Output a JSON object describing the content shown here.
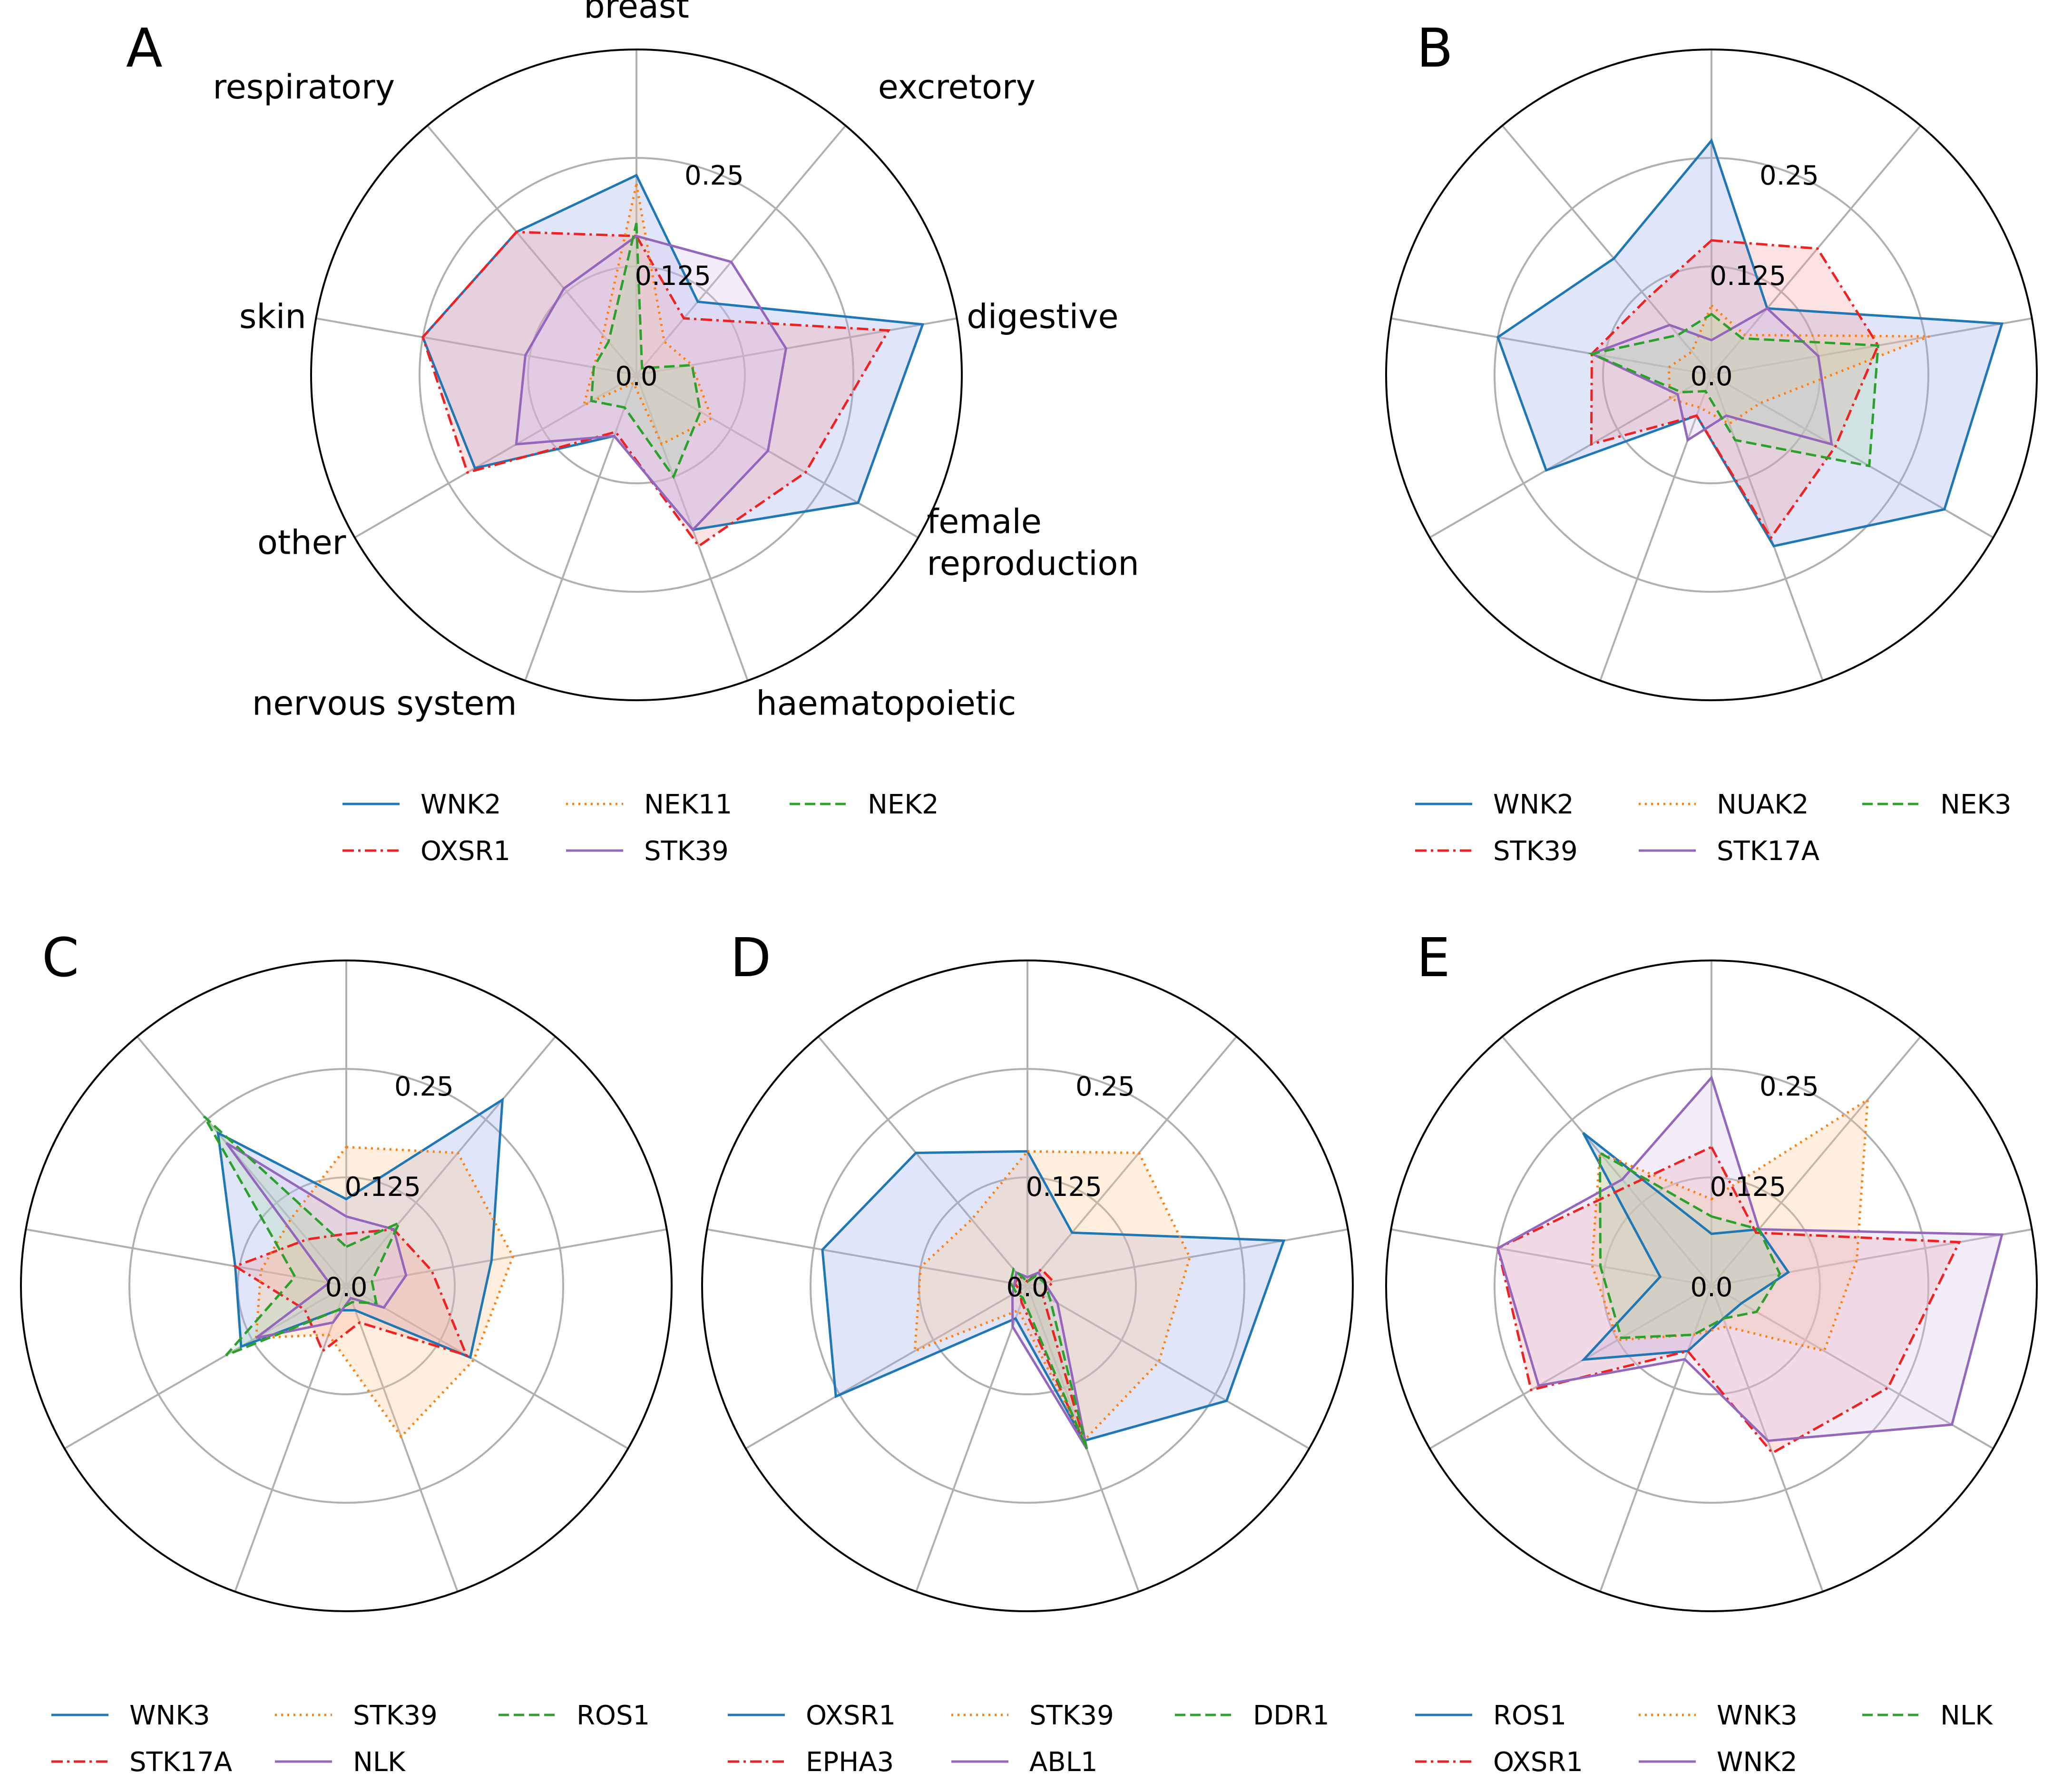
{
  "chart_data": [
    {
      "panel": "A",
      "type": "radar",
      "categories": [
        "breast",
        "excretory",
        "digestive",
        "female reproduction",
        "haematopoietic",
        "nervous system",
        "other",
        "skin",
        "respiratory"
      ],
      "category_labels": [
        [
          "breast"
        ],
        [
          "excretory"
        ],
        [
          "digestive"
        ],
        [
          "female",
          "reproduction"
        ],
        [
          "haematopoietic"
        ],
        [
          "nervous system"
        ],
        [
          "other"
        ],
        [
          "skin"
        ],
        [
          "respiratory"
        ]
      ],
      "show_category_labels": true,
      "rlim": [
        0,
        0.375
      ],
      "rticks": [
        "0.0",
        "0.125",
        "0.25"
      ],
      "series": [
        {
          "name": "WNK2",
          "color": "#1f77b4",
          "style": "solid",
          "fill": "#9aa8f0",
          "values": [
            0.23,
            0.11,
            0.335,
            0.295,
            0.19,
            0.075,
            0.215,
            0.25,
            0.215
          ]
        },
        {
          "name": "OXSR1",
          "color": "#ee2222",
          "style": "dashdot",
          "fill": "#f5a0a0",
          "values": [
            0.16,
            0.085,
            0.295,
            0.225,
            0.21,
            0.07,
            0.225,
            0.25,
            0.215
          ]
        },
        {
          "name": "NEK11",
          "color": "#ff7f0e",
          "style": "dotted",
          "fill": "#ffc890",
          "values": [
            0.22,
            0.05,
            0.065,
            0.1,
            0.085,
            0.01,
            0.07,
            0.05,
            0.06
          ]
        },
        {
          "name": "STK39",
          "color": "#9467bd",
          "style": "solid",
          "fill": "#d8c4ee",
          "values": [
            0.16,
            0.17,
            0.175,
            0.175,
            0.19,
            0.075,
            0.16,
            0.13,
            0.13
          ]
        },
        {
          "name": "NEK2",
          "color": "#2ca02c",
          "style": "dashed",
          "fill": "#a8dca8",
          "values": [
            0.175,
            0.01,
            0.065,
            0.085,
            0.125,
            0.04,
            0.06,
            0.05,
            0.05
          ]
        }
      ]
    },
    {
      "panel": "B",
      "type": "radar",
      "categories": [
        "breast",
        "excretory",
        "digestive",
        "female reproduction",
        "haematopoietic",
        "nervous system",
        "other",
        "skin",
        "respiratory"
      ],
      "show_category_labels": false,
      "rlim": [
        0,
        0.375
      ],
      "rticks": [
        "0.0",
        "0.125",
        "0.25"
      ],
      "series": [
        {
          "name": "WNK2",
          "color": "#1f77b4",
          "style": "solid",
          "fill": "#9aa8f0",
          "values": [
            0.27,
            0.1,
            0.34,
            0.31,
            0.21,
            0.05,
            0.22,
            0.25,
            0.175
          ]
        },
        {
          "name": "STK39",
          "color": "#ee2222",
          "style": "dashdot",
          "fill": "#f5a0a0",
          "values": [
            0.155,
            0.19,
            0.195,
            0.165,
            0.2,
            0.05,
            0.16,
            0.14,
            0.115
          ]
        },
        {
          "name": "NUAK2",
          "color": "#ff7f0e",
          "style": "dotted",
          "fill": "#ffc890",
          "values": [
            0.08,
            0.06,
            0.255,
            0.065,
            0.06,
            0.04,
            0.055,
            0.05,
            0.035
          ]
        },
        {
          "name": "STK17A",
          "color": "#9467bd",
          "style": "solid",
          "fill": "#d8c4ee",
          "values": [
            0.04,
            0.1,
            0.125,
            0.16,
            0.05,
            0.08,
            0.045,
            0.14,
            0.075
          ]
        },
        {
          "name": "NEK3",
          "color": "#2ca02c",
          "style": "dashed",
          "fill": "#a8dca8",
          "values": [
            0.07,
            0.055,
            0.195,
            0.21,
            0.08,
            0.02,
            0.04,
            0.14,
            0.06
          ]
        }
      ]
    },
    {
      "panel": "C",
      "type": "radar",
      "categories": [
        "breast",
        "excretory",
        "digestive",
        "female reproduction",
        "haematopoietic",
        "nervous system",
        "other",
        "skin",
        "respiratory"
      ],
      "show_category_labels": false,
      "rlim": [
        0,
        0.375
      ],
      "rticks": [
        "0.0",
        "0.125",
        "0.25"
      ],
      "series": [
        {
          "name": "WNK3",
          "color": "#1f77b4",
          "style": "solid",
          "fill": "#9aa8f0",
          "values": [
            0.1,
            0.28,
            0.17,
            0.165,
            0.03,
            0.03,
            0.14,
            0.13,
            0.23
          ]
        },
        {
          "name": "STK17A",
          "color": "#ee2222",
          "style": "dashdot",
          "fill": "#f5a0a0",
          "values": [
            0.06,
            0.085,
            0.1,
            0.16,
            0.045,
            0.08,
            0.055,
            0.13,
            0.07
          ]
        },
        {
          "name": "STK39",
          "color": "#ff7f0e",
          "style": "dotted",
          "fill": "#ffc890",
          "values": [
            0.16,
            0.2,
            0.195,
            0.17,
            0.185,
            0.06,
            0.12,
            0.1,
            0.1
          ]
        },
        {
          "name": "NLK",
          "color": "#9467bd",
          "style": "solid",
          "fill": "#d8c4ee",
          "values": [
            0.08,
            0.085,
            0.07,
            0.05,
            0.015,
            0.045,
            0.12,
            0.02,
            0.215
          ]
        },
        {
          "name": "ROS1",
          "color": "#2ca02c",
          "style": "dashed",
          "fill": "#a8dca8",
          "values": [
            0.045,
            0.095,
            0.03,
            0.04,
            0.02,
            0.03,
            0.16,
            0.06,
            0.255
          ]
        }
      ]
    },
    {
      "panel": "D",
      "type": "radar",
      "categories": [
        "breast",
        "excretory",
        "digestive",
        "female reproduction",
        "haematopoietic",
        "nervous system",
        "other",
        "skin",
        "respiratory"
      ],
      "show_category_labels": false,
      "rlim": [
        0,
        0.375
      ],
      "rticks": [
        "0.0",
        "0.125",
        "0.25"
      ],
      "series": [
        {
          "name": "OXSR1",
          "color": "#1f77b4",
          "style": "solid",
          "fill": "#9aa8f0",
          "values": [
            0.155,
            0.08,
            0.3,
            0.265,
            0.19,
            0.04,
            0.255,
            0.24,
            0.2
          ]
        },
        {
          "name": "EPHA3",
          "color": "#ee2222",
          "style": "dashdot",
          "fill": "#f5a0a0",
          "values": [
            0.005,
            0.025,
            0.03,
            0.02,
            0.195,
            0.02,
            0.01,
            0.015,
            0.015
          ]
        },
        {
          "name": "STK39",
          "color": "#ff7f0e",
          "style": "dotted",
          "fill": "#ffc890",
          "values": [
            0.155,
            0.2,
            0.19,
            0.175,
            0.19,
            0.03,
            0.15,
            0.125,
            0.1
          ]
        },
        {
          "name": "ABL1",
          "color": "#9467bd",
          "style": "solid",
          "fill": "#d8c4ee",
          "values": [
            0.01,
            0.02,
            0.02,
            0.04,
            0.2,
            0.05,
            0.02,
            0.015,
            0.02
          ]
        },
        {
          "name": "DDR1",
          "color": "#2ca02c",
          "style": "dashed",
          "fill": "#a8dca8",
          "values": [
            0.005,
            0.015,
            0.02,
            0.03,
            0.2,
            0.015,
            0.015,
            0.02,
            0.025
          ]
        }
      ]
    },
    {
      "panel": "E",
      "type": "radar",
      "categories": [
        "breast",
        "excretory",
        "digestive",
        "female reproduction",
        "haematopoietic",
        "nervous system",
        "other",
        "skin",
        "respiratory"
      ],
      "show_category_labels": false,
      "rlim": [
        0,
        0.375
      ],
      "rticks": [
        "0.0",
        "0.125",
        "0.25"
      ],
      "series": [
        {
          "name": "ROS1",
          "color": "#1f77b4",
          "style": "solid",
          "fill": "#9aa8f0",
          "values": [
            0.06,
            0.085,
            0.09,
            0.04,
            0.04,
            0.08,
            0.17,
            0.06,
            0.23
          ]
        },
        {
          "name": "OXSR1",
          "color": "#ee2222",
          "style": "dashdot",
          "fill": "#f5a0a0",
          "values": [
            0.16,
            0.08,
            0.29,
            0.235,
            0.205,
            0.08,
            0.24,
            0.25,
            0.15
          ]
        },
        {
          "name": "WNK3",
          "color": "#ff7f0e",
          "style": "dotted",
          "fill": "#ffc890",
          "values": [
            0.1,
            0.28,
            0.17,
            0.15,
            0.05,
            0.06,
            0.125,
            0.14,
            0.2
          ]
        },
        {
          "name": "WNK2",
          "color": "#9467bd",
          "style": "solid",
          "fill": "#d8c4ee",
          "values": [
            0.24,
            0.085,
            0.34,
            0.32,
            0.19,
            0.09,
            0.23,
            0.25,
            0.16
          ]
        },
        {
          "name": "NLK",
          "color": "#2ca02c",
          "style": "dashed",
          "fill": "#a8dca8",
          "values": [
            0.08,
            0.085,
            0.08,
            0.06,
            0.04,
            0.06,
            0.12,
            0.13,
            0.2
          ]
        }
      ]
    }
  ]
}
